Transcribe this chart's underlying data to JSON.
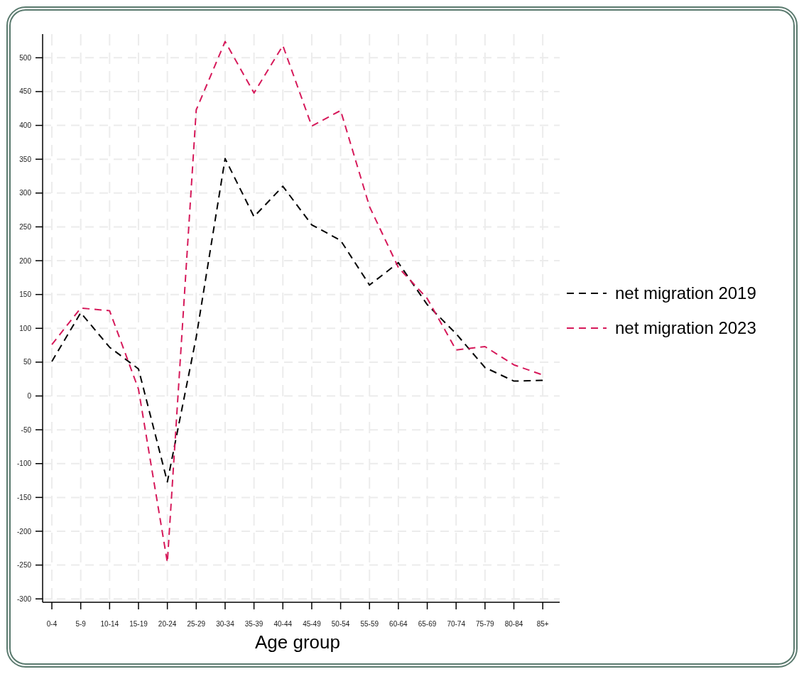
{
  "chart_data": {
    "type": "line",
    "xlabel": "Age group",
    "categories": [
      "0-4",
      "5-9",
      "10-14",
      "15-19",
      "20-24",
      "25-29",
      "30-34",
      "35-39",
      "40-44",
      "45-49",
      "50-54",
      "55-59",
      "60-64",
      "65-69",
      "70-74",
      "75-79",
      "80-84",
      "85+"
    ],
    "series": [
      {
        "name": "net migration 2019",
        "color": "#000000",
        "values": [
          51,
          123,
          72,
          40,
          -127,
          87,
          351,
          265,
          310,
          253,
          230,
          164,
          197,
          135,
          92,
          42,
          22,
          23
        ]
      },
      {
        "name": "net migration 2023",
        "color": "#d6195a",
        "values": [
          76,
          130,
          126,
          10,
          -246,
          423,
          524,
          448,
          518,
          399,
          422,
          280,
          190,
          144,
          68,
          73,
          46,
          31
        ]
      }
    ],
    "ylim": [
      -305,
      535
    ],
    "yticks": [
      -300,
      -250,
      -200,
      -150,
      -100,
      -50,
      0,
      50,
      100,
      150,
      200,
      250,
      300,
      350,
      400,
      450,
      500
    ],
    "grid": true,
    "legend": "right",
    "line_style": "dashed"
  }
}
